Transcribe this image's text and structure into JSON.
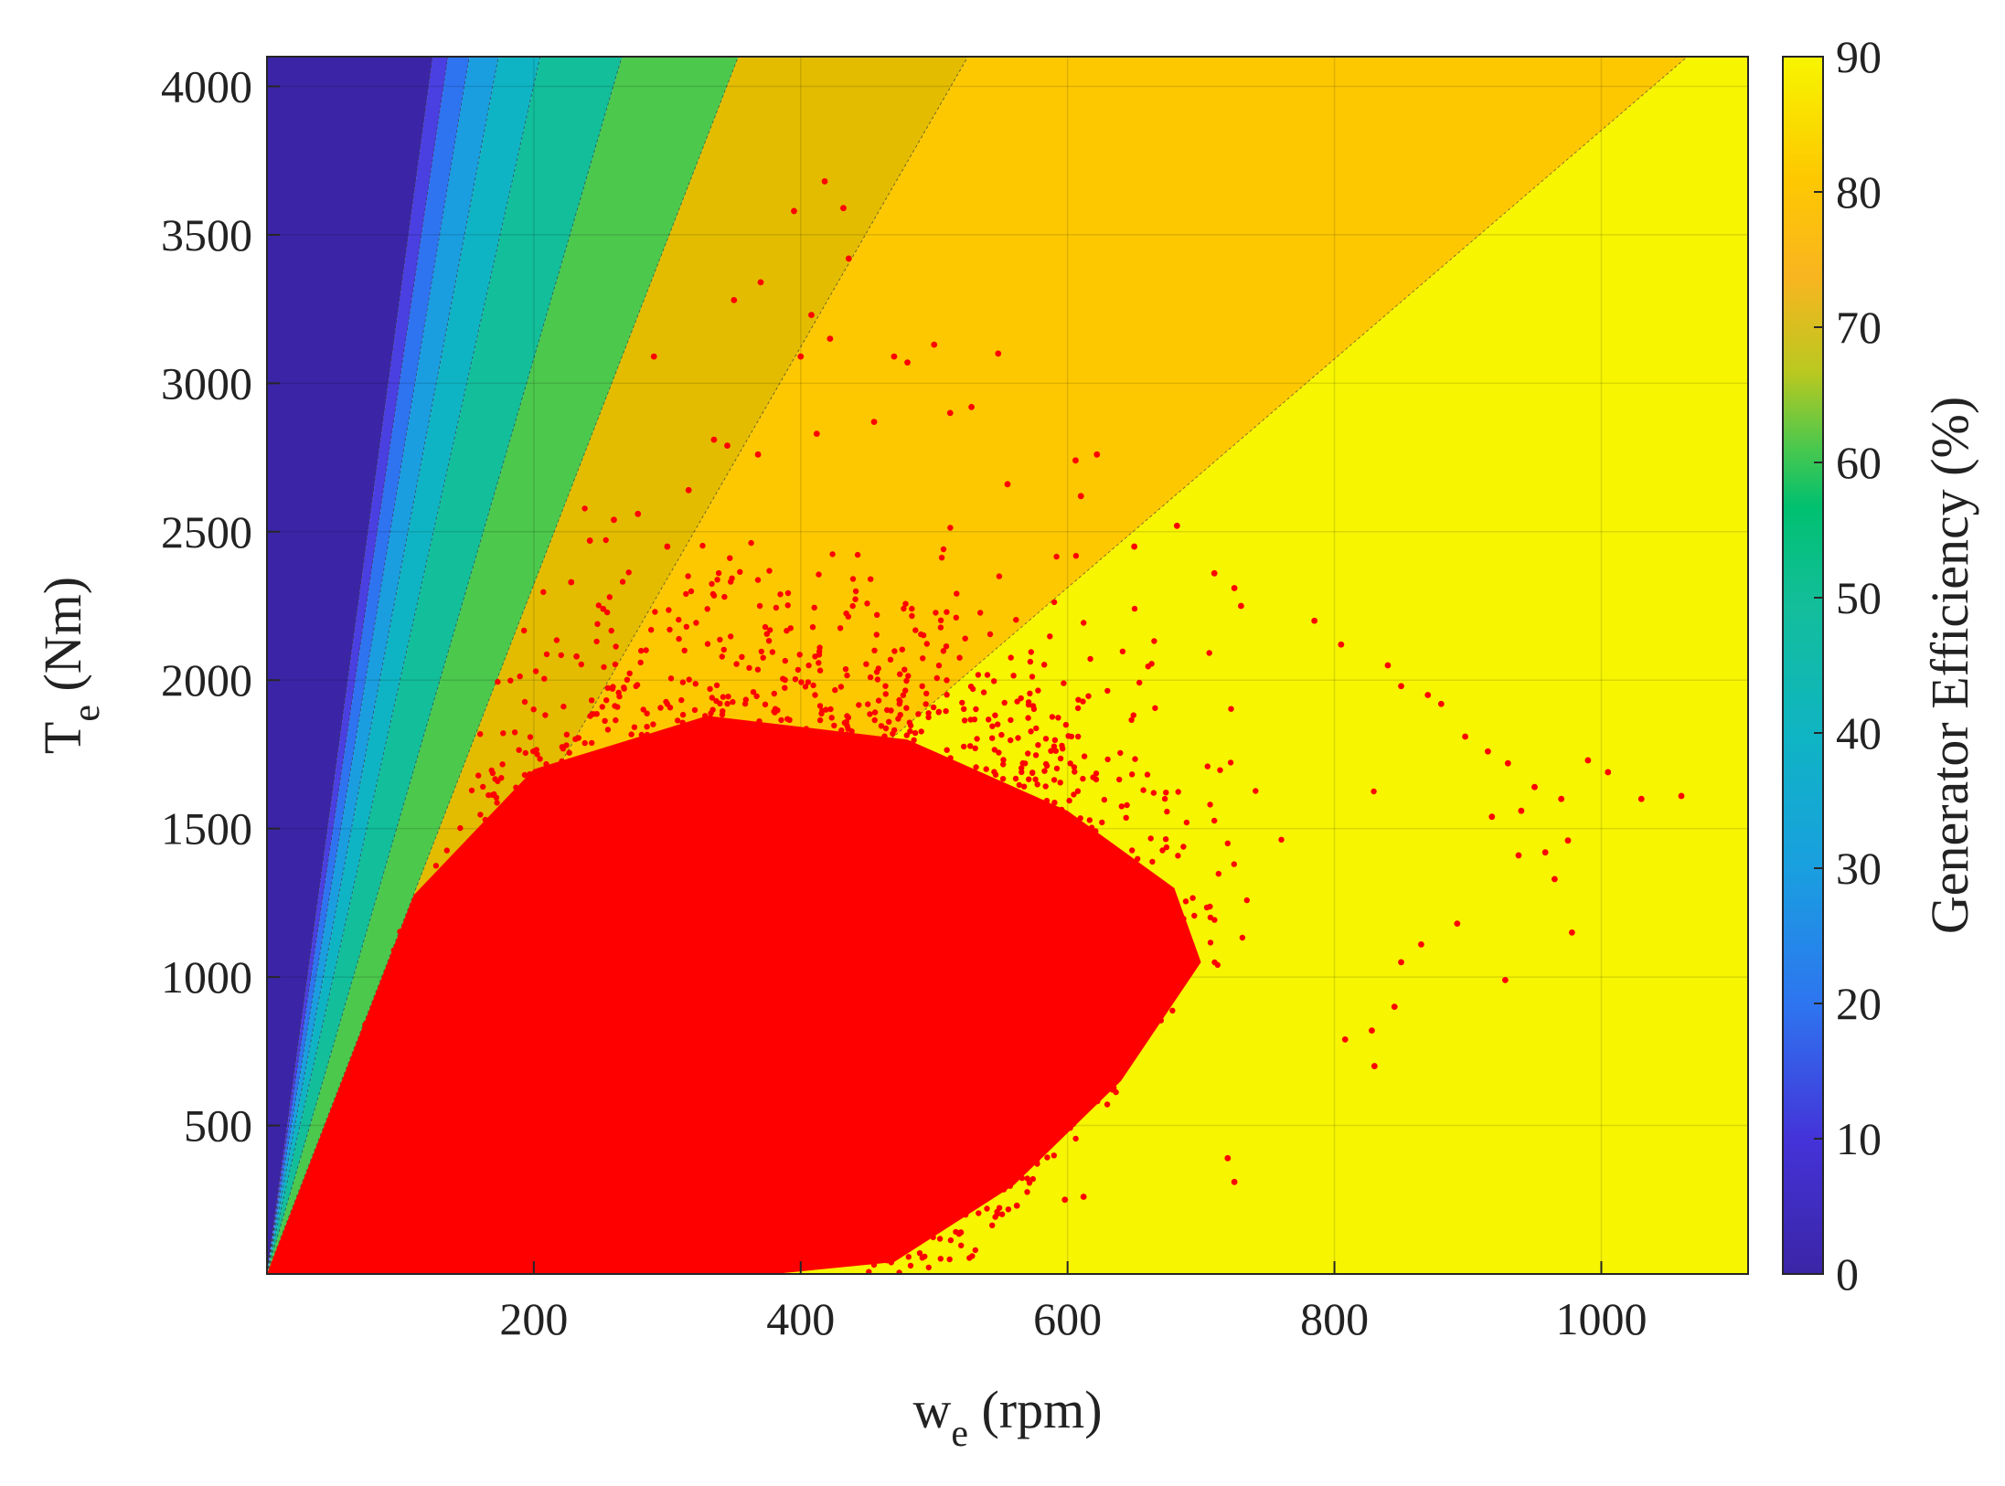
{
  "chart_data": {
    "type": "heatmap",
    "title": "",
    "xlabel": {
      "main": "w",
      "sub": "e",
      "unit": " (rpm)"
    },
    "ylabel": {
      "main": "T",
      "sub": "e",
      "unit": " (Nm)"
    },
    "xlim": [
      0,
      1110
    ],
    "ylim": [
      0,
      4100
    ],
    "x_ticks": [
      200,
      400,
      600,
      800,
      1000
    ],
    "y_ticks": [
      500,
      1000,
      1500,
      2000,
      2500,
      3000,
      3500,
      4000
    ],
    "grid": true,
    "colorbar": {
      "label": "Generator Efficiency (%)",
      "range": [
        0,
        90
      ],
      "ticks": [
        0,
        10,
        20,
        30,
        40,
        50,
        60,
        70,
        80,
        90
      ]
    },
    "contour_regions": [
      {
        "efficiency": 0,
        "upper_slope": null,
        "lower_slope": 33.0,
        "color": "#3b25a6"
      },
      {
        "efficiency": 10,
        "upper_slope": 33.0,
        "lower_slope": 30.2,
        "color": "#4a3fe0"
      },
      {
        "efficiency": 20,
        "upper_slope": 30.2,
        "lower_slope": 27.0,
        "color": "#2e74f0"
      },
      {
        "efficiency": 30,
        "upper_slope": 27.0,
        "lower_slope": 23.6,
        "color": "#1a9ee0"
      },
      {
        "efficiency": 40,
        "upper_slope": 23.6,
        "lower_slope": 20.0,
        "color": "#0fb4c4"
      },
      {
        "efficiency": 50,
        "upper_slope": 20.0,
        "lower_slope": 15.4,
        "color": "#13be9a"
      },
      {
        "efficiency": 60,
        "upper_slope": 15.4,
        "lower_slope": 11.6,
        "color": "#4cc84d"
      },
      {
        "efficiency": 70,
        "upper_slope": 11.6,
        "lower_slope": 7.8,
        "color": "#e3bc00"
      },
      {
        "efficiency": 80,
        "upper_slope": 7.8,
        "lower_slope": 3.85,
        "color": "#fdc800"
      },
      {
        "efficiency": 90,
        "upper_slope": 3.85,
        "lower_slope": null,
        "color": "#f7f500"
      }
    ],
    "scatter": {
      "color": "#ff0000",
      "description_cloud": {
        "center_w": 400,
        "center_t": 1000,
        "spread_w": 130,
        "spread_t": 520,
        "max_slope": 11.6
      },
      "outliers": [
        [
          418,
          3680
        ],
        [
          432,
          3590
        ],
        [
          395,
          3580
        ],
        [
          436,
          3420
        ],
        [
          370,
          3340
        ],
        [
          350,
          3280
        ],
        [
          408,
          3230
        ],
        [
          422,
          3150
        ],
        [
          400,
          3090
        ],
        [
          548,
          3100
        ],
        [
          500,
          3130
        ],
        [
          470,
          3090
        ],
        [
          480,
          3070
        ],
        [
          290,
          3090
        ],
        [
          335,
          2810
        ],
        [
          345,
          2790
        ],
        [
          368,
          2760
        ],
        [
          412,
          2830
        ],
        [
          455,
          2870
        ],
        [
          512,
          2900
        ],
        [
          528,
          2920
        ],
        [
          606,
          2740
        ],
        [
          622,
          2760
        ],
        [
          610,
          2620
        ],
        [
          555,
          2660
        ],
        [
          260,
          2540
        ],
        [
          278,
          2560
        ],
        [
          242,
          2470
        ],
        [
          316,
          2640
        ],
        [
          300,
          2450
        ],
        [
          228,
          2330
        ],
        [
          252,
          2240
        ],
        [
          232,
          2080
        ],
        [
          650,
          2450
        ],
        [
          682,
          2520
        ],
        [
          710,
          2360
        ],
        [
          730,
          2250
        ],
        [
          725,
          2310
        ],
        [
          785,
          2200
        ],
        [
          805,
          2120
        ],
        [
          840,
          2050
        ],
        [
          850,
          1980
        ],
        [
          870,
          1950
        ],
        [
          880,
          1920
        ],
        [
          898,
          1810
        ],
        [
          915,
          1760
        ],
        [
          930,
          1720
        ],
        [
          990,
          1730
        ],
        [
          1005,
          1690
        ],
        [
          1060,
          1610
        ],
        [
          1030,
          1600
        ],
        [
          970,
          1600
        ],
        [
          950,
          1640
        ],
        [
          940,
          1560
        ],
        [
          918,
          1540
        ],
        [
          975,
          1460
        ],
        [
          958,
          1420
        ],
        [
          938,
          1410
        ],
        [
          965,
          1330
        ],
        [
          978,
          1150
        ],
        [
          928,
          990
        ],
        [
          892,
          1180
        ],
        [
          865,
          1110
        ],
        [
          850,
          1050
        ],
        [
          845,
          900
        ],
        [
          830,
          700
        ],
        [
          828,
          820
        ],
        [
          808,
          790
        ],
        [
          725,
          310
        ],
        [
          720,
          390
        ],
        [
          612,
          260
        ],
        [
          598,
          250
        ],
        [
          562,
          230
        ],
        [
          520,
          140
        ],
        [
          440,
          180
        ]
      ]
    }
  }
}
